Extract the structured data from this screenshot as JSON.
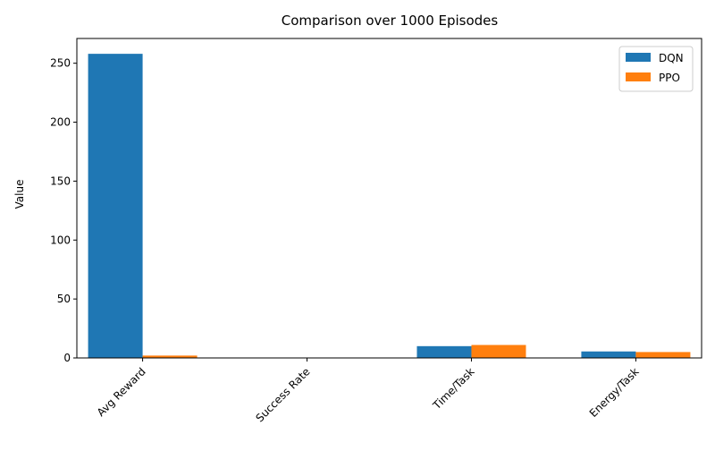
{
  "chart_data": {
    "type": "bar",
    "title": "Comparison over 1000 Episodes",
    "xlabel": "",
    "ylabel": "Value",
    "categories": [
      "Avg Reward",
      "Success Rate",
      "Time/Task",
      "Energy/Task"
    ],
    "series": [
      {
        "name": "DQN",
        "values": [
          258,
          0.3,
          10,
          5.5
        ],
        "color": "#1f77b4"
      },
      {
        "name": "PPO",
        "values": [
          2,
          0.1,
          11,
          5
        ],
        "color": "#ff7f0e"
      }
    ],
    "ylim": [
      0,
      271
    ],
    "yticks": [
      0,
      50,
      100,
      150,
      200,
      250
    ],
    "grid": false,
    "legend": "top-right"
  }
}
